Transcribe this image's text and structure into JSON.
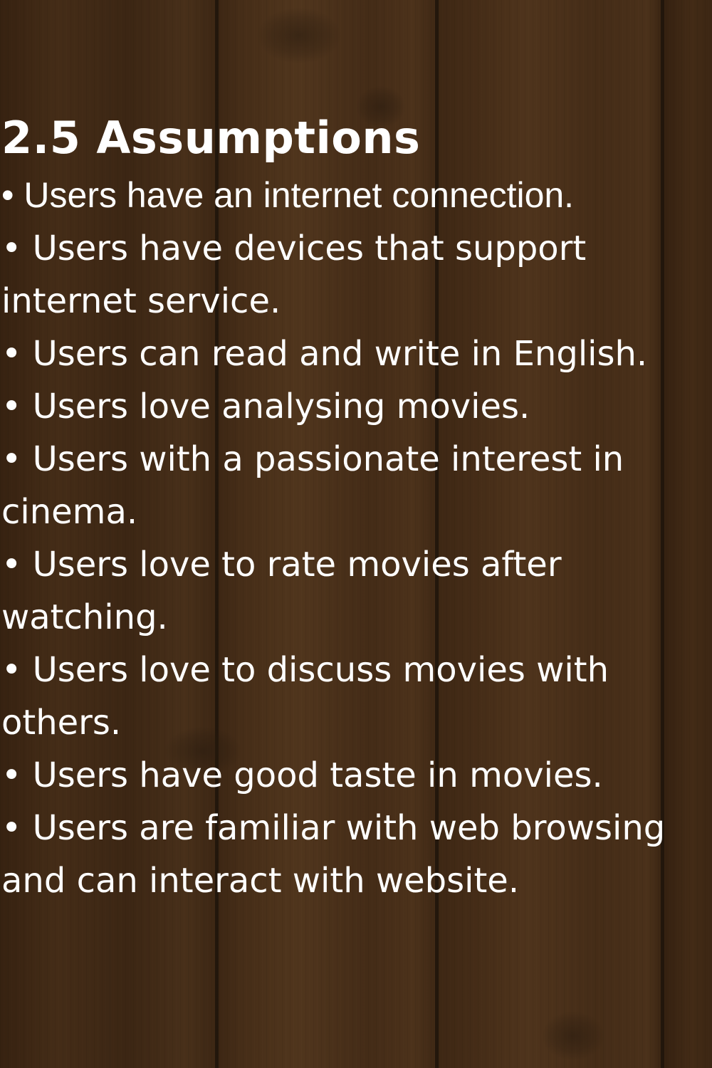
{
  "heading": "2.5 Assumptions",
  "assumptions": [
    "• Users have an internet connection.",
    "• Users have devices that support internet service.",
    "• Users can read and write in English.",
    "• Users love analysing movies.",
    "• Users with a passionate interest in cinema.",
    "• Users love to rate movies after watching.",
    "• Users love to discuss movies with others.",
    "• Users have good taste in movies.",
    "• Users are familiar with web browsing and can interact with website."
  ],
  "colors": {
    "text": "#ffffff",
    "background": "#7d6448"
  }
}
